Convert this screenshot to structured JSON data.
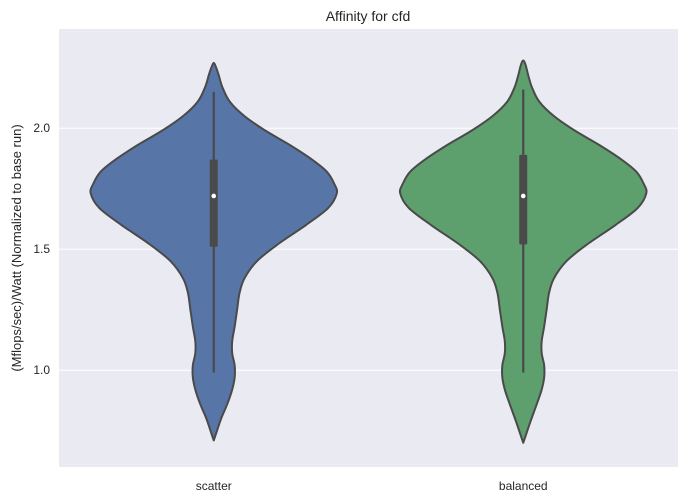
{
  "chart_data": {
    "type": "violin",
    "title": "Affinity for cfd",
    "xlabel": "",
    "ylabel": "(Mflops/sec)/Watt (Normalized to base run)",
    "categories": [
      "scatter",
      "balanced"
    ],
    "ylim": [
      0.6,
      2.41
    ],
    "yticks": [
      1.0,
      1.5,
      2.0
    ],
    "ytick_labels": [
      "1.0",
      "1.5",
      "2.0"
    ],
    "grid": true,
    "colors": {
      "background": "#EAEAF2",
      "grid": "#FFFFFF",
      "edge": "#4A4A4A",
      "scatter": "#5875A8",
      "balanced": "#5D9F6D"
    },
    "series": [
      {
        "category": "scatter",
        "summary": {
          "whisker_low": 0.99,
          "q1": 1.51,
          "median": 1.72,
          "q3": 1.87,
          "whisker_high": 2.15
        },
        "density": [
          [
            0.71,
            0.0
          ],
          [
            0.74,
            0.02
          ],
          [
            0.8,
            0.06
          ],
          [
            0.86,
            0.11
          ],
          [
            0.92,
            0.15
          ],
          [
            0.97,
            0.17
          ],
          [
            1.02,
            0.17
          ],
          [
            1.07,
            0.15
          ],
          [
            1.12,
            0.15
          ],
          [
            1.18,
            0.17
          ],
          [
            1.25,
            0.19
          ],
          [
            1.32,
            0.21
          ],
          [
            1.38,
            0.25
          ],
          [
            1.45,
            0.35
          ],
          [
            1.52,
            0.52
          ],
          [
            1.6,
            0.75
          ],
          [
            1.67,
            0.93
          ],
          [
            1.73,
            1.0
          ],
          [
            1.77,
            0.98
          ],
          [
            1.82,
            0.92
          ],
          [
            1.87,
            0.8
          ],
          [
            1.93,
            0.62
          ],
          [
            1.99,
            0.42
          ],
          [
            2.05,
            0.25
          ],
          [
            2.11,
            0.13
          ],
          [
            2.17,
            0.07
          ],
          [
            2.22,
            0.04
          ],
          [
            2.25,
            0.02
          ],
          [
            2.27,
            0.0
          ]
        ]
      },
      {
        "category": "balanced",
        "summary": {
          "whisker_low": 0.99,
          "q1": 1.52,
          "median": 1.72,
          "q3": 1.89,
          "whisker_high": 2.16
        },
        "density": [
          [
            0.7,
            0.0
          ],
          [
            0.73,
            0.02
          ],
          [
            0.79,
            0.06
          ],
          [
            0.86,
            0.11
          ],
          [
            0.92,
            0.15
          ],
          [
            0.97,
            0.17
          ],
          [
            1.02,
            0.17
          ],
          [
            1.07,
            0.15
          ],
          [
            1.12,
            0.15
          ],
          [
            1.18,
            0.17
          ],
          [
            1.25,
            0.19
          ],
          [
            1.32,
            0.21
          ],
          [
            1.38,
            0.25
          ],
          [
            1.45,
            0.35
          ],
          [
            1.52,
            0.52
          ],
          [
            1.6,
            0.75
          ],
          [
            1.67,
            0.93
          ],
          [
            1.73,
            1.0
          ],
          [
            1.77,
            0.98
          ],
          [
            1.82,
            0.92
          ],
          [
            1.87,
            0.8
          ],
          [
            1.93,
            0.62
          ],
          [
            1.99,
            0.42
          ],
          [
            2.05,
            0.25
          ],
          [
            2.11,
            0.13
          ],
          [
            2.17,
            0.07
          ],
          [
            2.22,
            0.04
          ],
          [
            2.26,
            0.02
          ],
          [
            2.28,
            0.0
          ]
        ]
      }
    ]
  }
}
